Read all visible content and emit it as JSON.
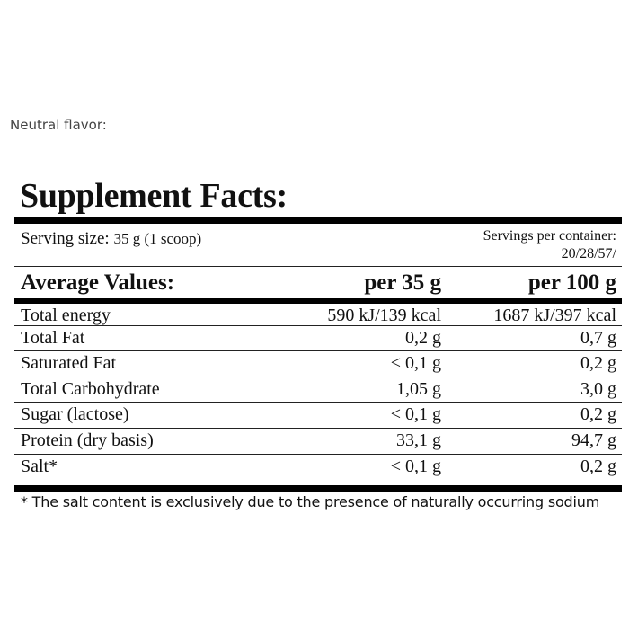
{
  "flavor_label": "Neutral flavor:",
  "title": "Supplement Facts:",
  "serving": {
    "label": "Serving size:",
    "value": "35 g (1 scoop)"
  },
  "servings_per_container": {
    "label": "Servings per container:",
    "value": "20/28/57/"
  },
  "header": {
    "col0": "Average Values:",
    "col1": "per 35 g",
    "col2": "per 100 g"
  },
  "rows": [
    {
      "name": "Total energy",
      "per35": "590 kJ/139 kcal",
      "per100": "1687 kJ/397 kcal"
    },
    {
      "name": "Total Fat",
      "per35": "0,2 g",
      "per100": "0,7 g"
    },
    {
      "name": "Saturated Fat",
      "per35": "< 0,1 g",
      "per100": "0,2 g"
    },
    {
      "name": "Total Carbohydrate",
      "per35": "1,05 g",
      "per100": "3,0 g"
    },
    {
      "name": "Sugar (lactose)",
      "per35": "< 0,1 g",
      "per100": "0,2 g"
    },
    {
      "name": "Protein (dry basis)",
      "per35": "33,1 g",
      "per100": "94,7 g"
    },
    {
      "name": "Salt*",
      "per35": "< 0,1 g",
      "per100": "0,2 g"
    }
  ],
  "footnote": "* The salt content is exclusively due to the presence of naturally occurring sodium"
}
